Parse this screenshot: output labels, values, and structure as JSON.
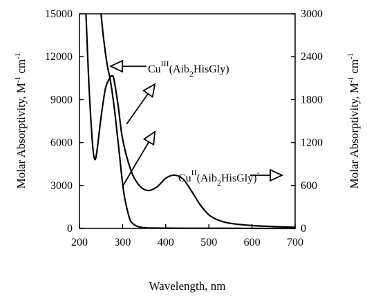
{
  "chart_data": {
    "type": "line",
    "xlabel": "Wavelength, nm",
    "ylabel_left": "Molar Absorptivity, M-1 cm-1",
    "ylabel_right": "Molar Absorptivity, M-1 cm-1",
    "xlim": [
      200,
      700
    ],
    "ylim_left": [
      0,
      15000
    ],
    "ylim_right": [
      0,
      3000
    ],
    "x_ticks": [
      "200",
      "300",
      "400",
      "500",
      "600",
      "700"
    ],
    "y_ticks_left": [
      "0",
      "3000",
      "6000",
      "9000",
      "12000",
      "15000"
    ],
    "y_ticks_right": [
      "0",
      "600",
      "1200",
      "1800",
      "2400",
      "3000"
    ],
    "grid": false,
    "series": [
      {
        "name": "CuIII(Aib2HisGly)",
        "axis": "left",
        "x": [
          250,
          255,
          260,
          265,
          270,
          275,
          280,
          285,
          290,
          295,
          300,
          305,
          310,
          315,
          320,
          330,
          340,
          350,
          360,
          400,
          450,
          500,
          550,
          600,
          650,
          700
        ],
        "y": [
          15000,
          13500,
          12300,
          11300,
          10600,
          9700,
          8600,
          7300,
          5900,
          4500,
          3100,
          2100,
          1400,
          800,
          450,
          200,
          90,
          50,
          30,
          20,
          10,
          5,
          3,
          2,
          1,
          0
        ]
      },
      {
        "name": "CuII(Aib2HisGly)-",
        "axis": "right",
        "x": [
          215,
          222,
          230,
          235,
          240,
          250,
          260,
          270,
          275,
          280,
          290,
          300,
          320,
          340,
          360,
          380,
          400,
          420,
          440,
          460,
          480,
          500,
          520,
          550,
          600,
          650,
          700
        ],
        "y": [
          3000,
          2000,
          1200,
          970,
          1060,
          1550,
          1950,
          2100,
          2130,
          2080,
          1700,
          1250,
          800,
          590,
          530,
          580,
          700,
          745,
          690,
          520,
          330,
          190,
          120,
          70,
          40,
          25,
          15
        ]
      }
    ],
    "annotations": [
      {
        "id": "cu3",
        "base": "Cu",
        "sup": "III",
        "mid": "(Aib",
        "sub": "2",
        "tail": "HisGly)",
        "sup2": ""
      },
      {
        "id": "cu2",
        "base": "Cu",
        "sup": "II",
        "mid": "(Aib",
        "sub": "2",
        "tail": "HisGly)",
        "sup2": "-"
      }
    ]
  }
}
